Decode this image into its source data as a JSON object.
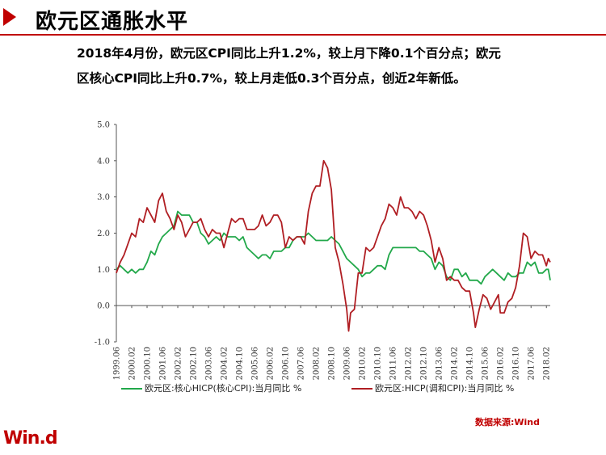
{
  "header": {
    "title": "欧元区通胀水平"
  },
  "description": {
    "line1": "2018年4月份，欧元区CPI同比上升1.2%，较上月下降0.1个百分点；欧元",
    "line2": "区核心CPI同比上升0.7%，较上月走低0.3个百分点，创近2年新低。"
  },
  "footer": {
    "source": "数据来源:Wind",
    "logo": "Win.d"
  },
  "colors": {
    "accent": "#c00000",
    "core_series": "#22a84a",
    "headline_series": "#b01e23"
  },
  "chart_data": {
    "type": "line",
    "title": "",
    "xlabel": "",
    "ylabel": "",
    "ylim": [
      -1.0,
      5.0
    ],
    "yticks": [
      "5.0",
      "4.0",
      "3.0",
      "2.0",
      "1.0",
      "0.0",
      "-1.0"
    ],
    "yticks_values": [
      5.0,
      4.0,
      3.0,
      2.0,
      1.0,
      0.0,
      -1.0
    ],
    "x_range": [
      "1999-06",
      "2018-04"
    ],
    "xticks": [
      "1999-06",
      "2000-02",
      "2000-10",
      "2001-06",
      "2002-02",
      "2002-10",
      "2003-06",
      "2004-02",
      "2004-10",
      "2005-06",
      "2006-02",
      "2006-10",
      "2007-06",
      "2008-02",
      "2008-10",
      "2009-06",
      "2010-02",
      "2010-10",
      "2011-06",
      "2012-02",
      "2012-10",
      "2013-06",
      "2014-02",
      "2014-10",
      "2015-06",
      "2016-02",
      "2016-10",
      "2017-06",
      "2018-02"
    ],
    "legend_position": "bottom",
    "grid": false,
    "series": [
      {
        "name": "欧元区:核心HICP(核心CPI):当月同比  %",
        "color": "#22a84a",
        "points": [
          [
            "1999-06",
            1.0
          ],
          [
            "1999-08",
            1.1
          ],
          [
            "1999-10",
            1.0
          ],
          [
            "1999-12",
            0.9
          ],
          [
            "2000-02",
            1.0
          ],
          [
            "2000-04",
            0.9
          ],
          [
            "2000-06",
            1.0
          ],
          [
            "2000-08",
            1.0
          ],
          [
            "2000-10",
            1.2
          ],
          [
            "2000-12",
            1.5
          ],
          [
            "2001-02",
            1.4
          ],
          [
            "2001-04",
            1.7
          ],
          [
            "2001-06",
            1.9
          ],
          [
            "2001-08",
            2.0
          ],
          [
            "2001-10",
            2.1
          ],
          [
            "2001-12",
            2.2
          ],
          [
            "2002-02",
            2.6
          ],
          [
            "2002-04",
            2.5
          ],
          [
            "2002-06",
            2.5
          ],
          [
            "2002-08",
            2.5
          ],
          [
            "2002-10",
            2.3
          ],
          [
            "2002-12",
            2.3
          ],
          [
            "2003-02",
            2.0
          ],
          [
            "2003-04",
            1.9
          ],
          [
            "2003-06",
            1.7
          ],
          [
            "2003-08",
            1.8
          ],
          [
            "2003-10",
            1.9
          ],
          [
            "2003-12",
            1.8
          ],
          [
            "2004-02",
            2.0
          ],
          [
            "2004-04",
            1.9
          ],
          [
            "2004-06",
            1.9
          ],
          [
            "2004-08",
            1.9
          ],
          [
            "2004-10",
            1.8
          ],
          [
            "2004-12",
            1.9
          ],
          [
            "2005-02",
            1.6
          ],
          [
            "2005-04",
            1.5
          ],
          [
            "2005-06",
            1.4
          ],
          [
            "2005-08",
            1.3
          ],
          [
            "2005-10",
            1.4
          ],
          [
            "2005-12",
            1.4
          ],
          [
            "2006-02",
            1.3
          ],
          [
            "2006-04",
            1.5
          ],
          [
            "2006-06",
            1.5
          ],
          [
            "2006-08",
            1.5
          ],
          [
            "2006-10",
            1.6
          ],
          [
            "2006-12",
            1.6
          ],
          [
            "2007-02",
            1.8
          ],
          [
            "2007-04",
            1.9
          ],
          [
            "2007-06",
            1.9
          ],
          [
            "2007-08",
            1.9
          ],
          [
            "2007-10",
            2.0
          ],
          [
            "2007-12",
            1.9
          ],
          [
            "2008-02",
            1.8
          ],
          [
            "2008-04",
            1.8
          ],
          [
            "2008-06",
            1.8
          ],
          [
            "2008-08",
            1.8
          ],
          [
            "2008-10",
            1.9
          ],
          [
            "2008-12",
            1.8
          ],
          [
            "2009-02",
            1.7
          ],
          [
            "2009-04",
            1.5
          ],
          [
            "2009-06",
            1.3
          ],
          [
            "2009-08",
            1.2
          ],
          [
            "2009-10",
            1.1
          ],
          [
            "2009-12",
            1.0
          ],
          [
            "2010-02",
            0.8
          ],
          [
            "2010-04",
            0.9
          ],
          [
            "2010-06",
            0.9
          ],
          [
            "2010-08",
            1.0
          ],
          [
            "2010-10",
            1.1
          ],
          [
            "2010-12",
            1.1
          ],
          [
            "2011-02",
            1.0
          ],
          [
            "2011-04",
            1.4
          ],
          [
            "2011-06",
            1.6
          ],
          [
            "2011-08",
            1.6
          ],
          [
            "2011-10",
            1.6
          ],
          [
            "2011-12",
            1.6
          ],
          [
            "2012-02",
            1.6
          ],
          [
            "2012-04",
            1.6
          ],
          [
            "2012-06",
            1.6
          ],
          [
            "2012-08",
            1.5
          ],
          [
            "2012-10",
            1.5
          ],
          [
            "2012-12",
            1.4
          ],
          [
            "2013-02",
            1.3
          ],
          [
            "2013-04",
            1.0
          ],
          [
            "2013-06",
            1.2
          ],
          [
            "2013-08",
            1.1
          ],
          [
            "2013-10",
            0.8
          ],
          [
            "2013-12",
            0.7
          ],
          [
            "2014-02",
            1.0
          ],
          [
            "2014-04",
            1.0
          ],
          [
            "2014-06",
            0.8
          ],
          [
            "2014-08",
            0.9
          ],
          [
            "2014-10",
            0.7
          ],
          [
            "2014-12",
            0.7
          ],
          [
            "2015-02",
            0.7
          ],
          [
            "2015-04",
            0.6
          ],
          [
            "2015-06",
            0.8
          ],
          [
            "2015-08",
            0.9
          ],
          [
            "2015-10",
            1.0
          ],
          [
            "2015-12",
            0.9
          ],
          [
            "2016-02",
            0.8
          ],
          [
            "2016-04",
            0.7
          ],
          [
            "2016-06",
            0.9
          ],
          [
            "2016-08",
            0.8
          ],
          [
            "2016-10",
            0.8
          ],
          [
            "2016-12",
            0.9
          ],
          [
            "2017-02",
            0.9
          ],
          [
            "2017-04",
            1.2
          ],
          [
            "2017-06",
            1.1
          ],
          [
            "2017-08",
            1.2
          ],
          [
            "2017-10",
            0.9
          ],
          [
            "2017-12",
            0.9
          ],
          [
            "2018-02",
            1.0
          ],
          [
            "2018-03",
            1.0
          ],
          [
            "2018-04",
            0.7
          ]
        ]
      },
      {
        "name": "欧元区:HICP(调和CPI):当月同比  %",
        "color": "#b01e23",
        "points": [
          [
            "1999-06",
            0.9
          ],
          [
            "1999-08",
            1.2
          ],
          [
            "1999-10",
            1.4
          ],
          [
            "1999-12",
            1.7
          ],
          [
            "2000-02",
            2.0
          ],
          [
            "2000-04",
            1.9
          ],
          [
            "2000-06",
            2.4
          ],
          [
            "2000-08",
            2.3
          ],
          [
            "2000-10",
            2.7
          ],
          [
            "2000-12",
            2.5
          ],
          [
            "2001-02",
            2.3
          ],
          [
            "2001-04",
            2.9
          ],
          [
            "2001-06",
            3.1
          ],
          [
            "2001-08",
            2.6
          ],
          [
            "2001-10",
            2.4
          ],
          [
            "2001-12",
            2.1
          ],
          [
            "2002-02",
            2.5
          ],
          [
            "2002-04",
            2.3
          ],
          [
            "2002-06",
            1.9
          ],
          [
            "2002-08",
            2.1
          ],
          [
            "2002-10",
            2.3
          ],
          [
            "2002-12",
            2.3
          ],
          [
            "2003-02",
            2.4
          ],
          [
            "2003-04",
            2.1
          ],
          [
            "2003-06",
            1.9
          ],
          [
            "2003-08",
            2.1
          ],
          [
            "2003-10",
            2.0
          ],
          [
            "2003-12",
            2.0
          ],
          [
            "2004-02",
            1.6
          ],
          [
            "2004-04",
            2.0
          ],
          [
            "2004-06",
            2.4
          ],
          [
            "2004-08",
            2.3
          ],
          [
            "2004-10",
            2.4
          ],
          [
            "2004-12",
            2.4
          ],
          [
            "2005-02",
            2.1
          ],
          [
            "2005-04",
            2.1
          ],
          [
            "2005-06",
            2.1
          ],
          [
            "2005-08",
            2.2
          ],
          [
            "2005-10",
            2.5
          ],
          [
            "2005-12",
            2.2
          ],
          [
            "2006-02",
            2.3
          ],
          [
            "2006-04",
            2.5
          ],
          [
            "2006-06",
            2.5
          ],
          [
            "2006-08",
            2.3
          ],
          [
            "2006-10",
            1.6
          ],
          [
            "2006-12",
            1.9
          ],
          [
            "2007-02",
            1.8
          ],
          [
            "2007-04",
            1.9
          ],
          [
            "2007-06",
            1.9
          ],
          [
            "2007-08",
            1.7
          ],
          [
            "2007-10",
            2.6
          ],
          [
            "2007-12",
            3.1
          ],
          [
            "2008-02",
            3.3
          ],
          [
            "2008-04",
            3.3
          ],
          [
            "2008-06",
            4.0
          ],
          [
            "2008-08",
            3.8
          ],
          [
            "2008-10",
            3.2
          ],
          [
            "2008-12",
            1.6
          ],
          [
            "2009-02",
            1.2
          ],
          [
            "2009-04",
            0.6
          ],
          [
            "2009-06",
            -0.1
          ],
          [
            "2009-07",
            -0.7
          ],
          [
            "2009-08",
            -0.2
          ],
          [
            "2009-10",
            -0.1
          ],
          [
            "2009-12",
            0.9
          ],
          [
            "2010-02",
            0.9
          ],
          [
            "2010-04",
            1.6
          ],
          [
            "2010-06",
            1.5
          ],
          [
            "2010-08",
            1.6
          ],
          [
            "2010-10",
            1.9
          ],
          [
            "2010-12",
            2.2
          ],
          [
            "2011-02",
            2.4
          ],
          [
            "2011-04",
            2.8
          ],
          [
            "2011-06",
            2.7
          ],
          [
            "2011-08",
            2.5
          ],
          [
            "2011-10",
            3.0
          ],
          [
            "2011-12",
            2.7
          ],
          [
            "2012-02",
            2.7
          ],
          [
            "2012-04",
            2.6
          ],
          [
            "2012-06",
            2.4
          ],
          [
            "2012-08",
            2.6
          ],
          [
            "2012-10",
            2.5
          ],
          [
            "2012-12",
            2.2
          ],
          [
            "2013-02",
            1.8
          ],
          [
            "2013-04",
            1.2
          ],
          [
            "2013-06",
            1.6
          ],
          [
            "2013-08",
            1.3
          ],
          [
            "2013-10",
            0.7
          ],
          [
            "2013-12",
            0.8
          ],
          [
            "2014-02",
            0.7
          ],
          [
            "2014-04",
            0.7
          ],
          [
            "2014-06",
            0.5
          ],
          [
            "2014-08",
            0.4
          ],
          [
            "2014-10",
            0.4
          ],
          [
            "2014-12",
            -0.2
          ],
          [
            "2015-01",
            -0.6
          ],
          [
            "2015-03",
            -0.1
          ],
          [
            "2015-05",
            0.3
          ],
          [
            "2015-07",
            0.2
          ],
          [
            "2015-09",
            -0.1
          ],
          [
            "2015-11",
            0.1
          ],
          [
            "2016-01",
            0.3
          ],
          [
            "2016-02",
            -0.2
          ],
          [
            "2016-04",
            -0.2
          ],
          [
            "2016-06",
            0.1
          ],
          [
            "2016-08",
            0.2
          ],
          [
            "2016-10",
            0.5
          ],
          [
            "2016-12",
            1.1
          ],
          [
            "2017-02",
            2.0
          ],
          [
            "2017-04",
            1.9
          ],
          [
            "2017-06",
            1.3
          ],
          [
            "2017-08",
            1.5
          ],
          [
            "2017-10",
            1.4
          ],
          [
            "2017-12",
            1.4
          ],
          [
            "2018-02",
            1.1
          ],
          [
            "2018-03",
            1.3
          ],
          [
            "2018-04",
            1.2
          ]
        ]
      }
    ]
  }
}
